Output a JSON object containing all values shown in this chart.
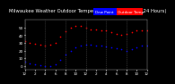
{
  "title": "Milwaukee Weather Outdoor Temperature vs Dew Point (24 Hours)",
  "legend_temp": "Outdoor Temp",
  "legend_dew": "Dew Point",
  "temp_color": "#ff0000",
  "dew_color": "#0000ff",
  "bg_color": "#000000",
  "plot_bg_color": "#000000",
  "grid_color": "#555555",
  "text_color": "#ffffff",
  "axis_color": "#aaaaaa",
  "x_labels": [
    "12",
    "",
    "2",
    "",
    "4",
    "",
    "6",
    "",
    "8",
    "",
    "10",
    "",
    "12",
    "",
    "2",
    "",
    "4",
    "",
    "6",
    "",
    "8",
    "",
    "10",
    "",
    "12"
  ],
  "temp_y": [
    32,
    30,
    29,
    28,
    27,
    28,
    30,
    38,
    45,
    50,
    52,
    52,
    50,
    48,
    47,
    46,
    46,
    44,
    42,
    40,
    42,
    44,
    46,
    46,
    46
  ],
  "dew_y": [
    5,
    3,
    2,
    1,
    0,
    0,
    2,
    8,
    15,
    20,
    24,
    26,
    28,
    28,
    27,
    26,
    25,
    24,
    23,
    22,
    20,
    22,
    24,
    26,
    27
  ],
  "ylim": [
    -5,
    60
  ],
  "ytick_vals": [
    0,
    10,
    20,
    30,
    40,
    50
  ],
  "ytick_labels": [
    "0",
    "10",
    "20",
    "30",
    "40",
    "50"
  ],
  "grid_x_positions": [
    0,
    4,
    8,
    12,
    16,
    20,
    24
  ],
  "title_fontsize": 3.8,
  "tick_fontsize": 3.0,
  "marker_size": 1.2,
  "legend_fontsize": 3.0,
  "n_points": 25
}
